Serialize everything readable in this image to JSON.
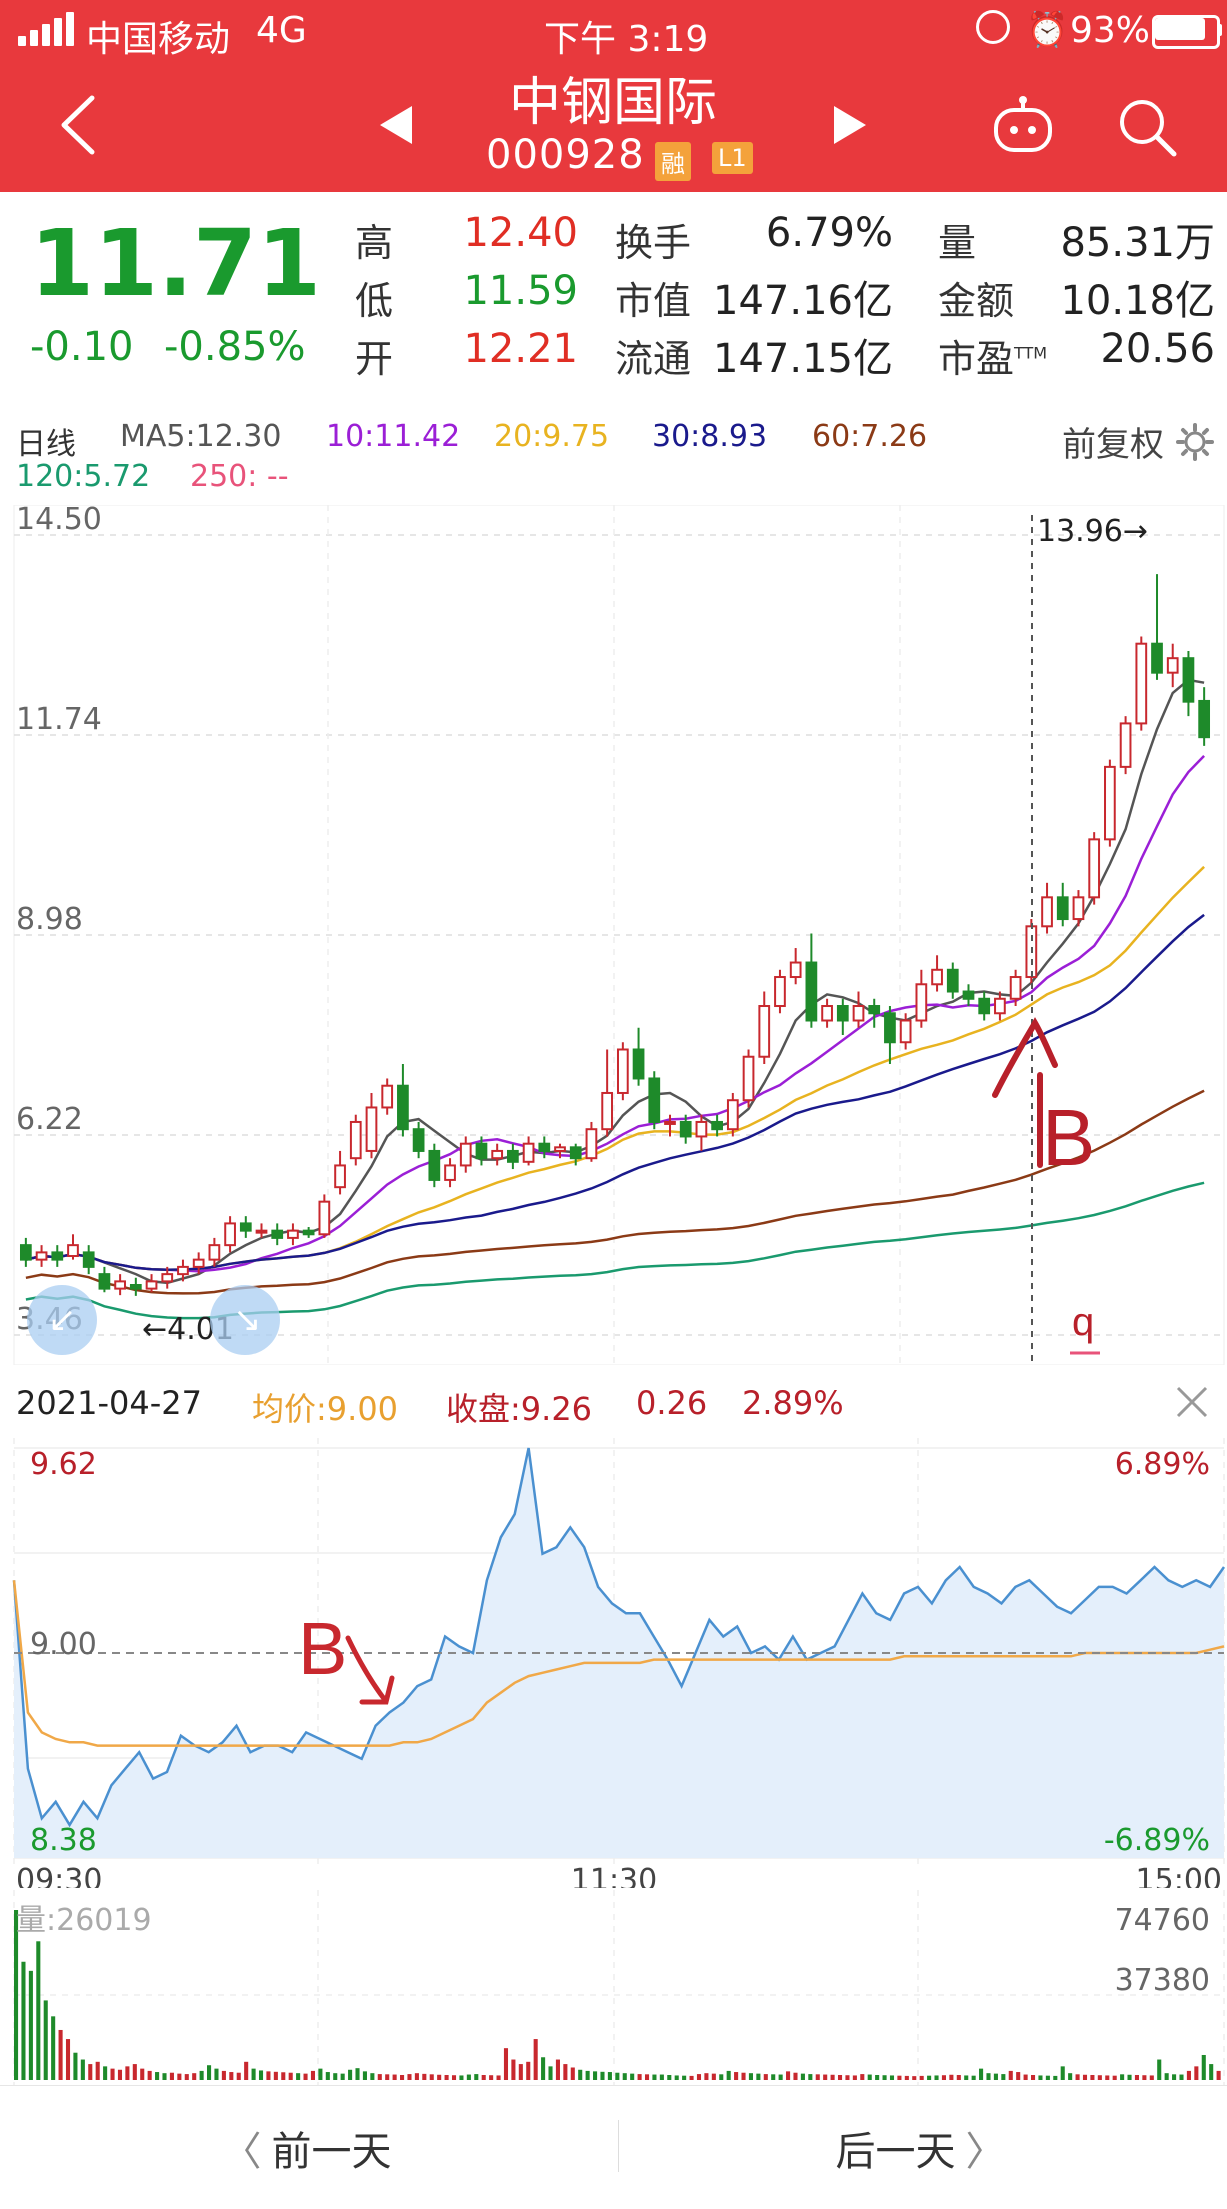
{
  "status_bar": {
    "carrier": "中国移动",
    "network": "4G",
    "time": "下午 3:19",
    "battery": "93%"
  },
  "header": {
    "back_icon": "chevron-left-icon",
    "stock_name": "中钢国际",
    "stock_code": "000928",
    "tag_margin": "融",
    "tag_level": "L1",
    "prev_icon": "triangle-left-icon",
    "next_icon": "triangle-right-icon",
    "robot_icon": "robot-icon",
    "search_icon": "search-icon"
  },
  "quote": {
    "price": "11.71",
    "change": "-0.10",
    "change_pct": "-0.85%",
    "rows": [
      [
        {
          "label": "高",
          "value": "12.40",
          "color": "red"
        },
        {
          "label": "换手",
          "value": "6.79%",
          "color": "dark"
        },
        {
          "label": "量",
          "value": "85.31万",
          "color": "dark"
        }
      ],
      [
        {
          "label": "低",
          "value": "11.59",
          "color": "green"
        },
        {
          "label": "市值",
          "value": "147.16亿",
          "color": "dark"
        },
        {
          "label": "金额",
          "value": "10.18亿",
          "color": "dark"
        }
      ],
      [
        {
          "label": "开",
          "value": "12.21",
          "color": "red"
        },
        {
          "label": "流通",
          "value": "147.15亿",
          "color": "dark"
        },
        {
          "label": "市盈",
          "value": "20.56",
          "color": "dark",
          "sup": "TTM"
        }
      ]
    ]
  },
  "ma_legend": {
    "period": "日线",
    "ma5": "MA5:12.30",
    "ma10": "10:11.42",
    "ma20": "20:9.75",
    "ma30": "30:8.93",
    "ma60": "60:7.26",
    "ma120": "120:5.72",
    "ma250": "250: --",
    "adjust": "前复权",
    "settings_icon": "gear-icon",
    "colors": {
      "ma5": "#555555",
      "ma10": "#9b1fd6",
      "ma20": "#e8b320",
      "ma30": "#1a1a8c",
      "ma60": "#8b3a16",
      "ma120": "#1a9a6e",
      "ma250": "#e8537a"
    }
  },
  "kline": {
    "y_ticks": [
      "14.50",
      "11.74",
      "8.98",
      "6.22",
      "3.46"
    ],
    "high_marker": "13.96→",
    "low_marker": "←4.01",
    "annotation_b": "B",
    "annotation_q": "q"
  },
  "chart_data": {
    "type": "candlestick",
    "ylim": [
      3.46,
      14.5
    ],
    "y_ticks": [
      14.5,
      11.74,
      8.98,
      6.22,
      3.46
    ],
    "candles": [
      [
        4.7,
        4.5,
        4.8,
        4.4
      ],
      [
        4.5,
        4.6,
        4.7,
        4.4
      ],
      [
        4.6,
        4.5,
        4.7,
        4.4
      ],
      [
        4.55,
        4.7,
        4.85,
        4.5
      ],
      [
        4.6,
        4.4,
        4.7,
        4.3
      ],
      [
        4.3,
        4.1,
        4.4,
        4.05
      ],
      [
        4.1,
        4.2,
        4.3,
        4.01
      ],
      [
        4.15,
        4.1,
        4.25,
        4.0
      ],
      [
        4.1,
        4.2,
        4.3,
        4.05
      ],
      [
        4.2,
        4.3,
        4.4,
        4.1
      ],
      [
        4.3,
        4.4,
        4.5,
        4.2
      ],
      [
        4.4,
        4.5,
        4.6,
        4.3
      ],
      [
        4.5,
        4.7,
        4.8,
        4.4
      ],
      [
        4.7,
        5.0,
        5.1,
        4.6
      ],
      [
        5.0,
        4.9,
        5.1,
        4.8
      ],
      [
        4.9,
        4.9,
        5.0,
        4.8
      ],
      [
        4.9,
        4.8,
        5.0,
        4.7
      ],
      [
        4.8,
        4.9,
        5.0,
        4.7
      ],
      [
        4.9,
        4.85,
        4.95,
        4.8
      ],
      [
        4.85,
        5.3,
        5.4,
        4.8
      ],
      [
        5.5,
        5.8,
        6.0,
        5.4
      ],
      [
        5.9,
        6.4,
        6.5,
        5.8
      ],
      [
        6.0,
        6.6,
        6.8,
        5.9
      ],
      [
        6.6,
        6.9,
        7.0,
        6.5
      ],
      [
        6.9,
        6.3,
        7.2,
        6.2
      ],
      [
        6.3,
        6.0,
        6.4,
        5.9
      ],
      [
        6.0,
        5.6,
        6.1,
        5.5
      ],
      [
        5.6,
        5.8,
        5.9,
        5.5
      ],
      [
        5.8,
        6.1,
        6.2,
        5.7
      ],
      [
        6.1,
        5.9,
        6.2,
        5.8
      ],
      [
        5.9,
        6.0,
        6.1,
        5.8
      ],
      [
        6.0,
        5.85,
        6.1,
        5.75
      ],
      [
        5.85,
        6.1,
        6.2,
        5.8
      ],
      [
        6.1,
        6.0,
        6.2,
        5.9
      ],
      [
        6.0,
        6.05,
        6.1,
        5.9
      ],
      [
        6.05,
        5.9,
        6.1,
        5.8
      ],
      [
        5.9,
        6.3,
        6.4,
        5.85
      ],
      [
        6.3,
        6.8,
        7.4,
        6.2
      ],
      [
        6.8,
        7.4,
        7.5,
        6.7
      ],
      [
        7.4,
        7.0,
        7.7,
        6.9
      ],
      [
        7.0,
        6.4,
        7.1,
        6.3
      ],
      [
        6.4,
        6.4,
        6.5,
        6.2
      ],
      [
        6.4,
        6.2,
        6.5,
        6.1
      ],
      [
        6.2,
        6.4,
        6.5,
        6.0
      ],
      [
        6.4,
        6.3,
        6.5,
        6.2
      ],
      [
        6.3,
        6.7,
        6.8,
        6.2
      ],
      [
        6.7,
        7.3,
        7.4,
        6.6
      ],
      [
        7.3,
        8.0,
        8.2,
        7.2
      ],
      [
        8.0,
        8.4,
        8.5,
        7.9
      ],
      [
        8.4,
        8.6,
        8.8,
        8.3
      ],
      [
        8.6,
        7.8,
        9.0,
        7.7
      ],
      [
        7.8,
        8.0,
        8.1,
        7.7
      ],
      [
        8.0,
        7.8,
        8.1,
        7.6
      ],
      [
        7.8,
        8.0,
        8.2,
        7.7
      ],
      [
        8.0,
        7.9,
        8.1,
        7.7
      ],
      [
        7.9,
        7.5,
        8.0,
        7.2
      ],
      [
        7.5,
        7.8,
        7.9,
        7.4
      ],
      [
        7.8,
        8.3,
        8.5,
        7.7
      ],
      [
        8.3,
        8.5,
        8.7,
        8.2
      ],
      [
        8.5,
        8.2,
        8.6,
        8.1
      ],
      [
        8.2,
        8.1,
        8.3,
        8.0
      ],
      [
        8.1,
        7.9,
        8.2,
        7.8
      ],
      [
        7.9,
        8.1,
        8.2,
        7.8
      ],
      [
        8.1,
        8.4,
        8.5,
        8.0
      ],
      [
        8.4,
        9.1,
        9.2,
        8.3
      ],
      [
        9.1,
        9.5,
        9.7,
        9.0
      ],
      [
        9.5,
        9.2,
        9.7,
        9.1
      ],
      [
        9.2,
        9.5,
        9.6,
        9.1
      ],
      [
        9.5,
        10.3,
        10.4,
        9.4
      ],
      [
        10.3,
        11.3,
        11.4,
        10.2
      ],
      [
        11.3,
        11.9,
        12.0,
        11.2
      ],
      [
        11.9,
        13.0,
        13.1,
        11.8
      ],
      [
        13.0,
        12.6,
        13.96,
        12.5
      ],
      [
        12.6,
        12.8,
        13.0,
        12.4
      ],
      [
        12.8,
        12.2,
        12.9,
        12.0
      ],
      [
        12.21,
        11.71,
        12.4,
        11.59
      ]
    ],
    "intraday": {
      "date": "2021-04-27",
      "avg_label": "均价:9.00",
      "close_label": "收盘:9.26",
      "chg": "0.26",
      "chg_pct": "2.89%",
      "ylim": [
        8.38,
        9.62
      ],
      "prev_close": 9.0,
      "x_ticks": [
        "09:30",
        "11:30",
        "15:00"
      ],
      "price": [
        9.22,
        8.65,
        8.5,
        8.55,
        8.48,
        8.55,
        8.5,
        8.6,
        8.65,
        8.7,
        8.62,
        8.64,
        8.75,
        8.72,
        8.7,
        8.73,
        8.78,
        8.7,
        8.72,
        8.72,
        8.7,
        8.76,
        8.74,
        8.72,
        8.7,
        8.68,
        8.78,
        8.82,
        8.85,
        8.9,
        8.92,
        9.05,
        9.02,
        9.0,
        9.22,
        9.35,
        9.42,
        9.62,
        9.3,
        9.32,
        9.38,
        9.32,
        9.2,
        9.15,
        9.12,
        9.12,
        9.05,
        8.98,
        8.9,
        9.0,
        9.1,
        9.05,
        9.08,
        9.0,
        9.02,
        8.98,
        9.05,
        8.98,
        9.0,
        9.02,
        9.1,
        9.18,
        9.12,
        9.1,
        9.18,
        9.2,
        9.15,
        9.22,
        9.26,
        9.2,
        9.18,
        9.15,
        9.2,
        9.22,
        9.18,
        9.14,
        9.12,
        9.16,
        9.2,
        9.2,
        9.18,
        9.22,
        9.26,
        9.22,
        9.2,
        9.22,
        9.2,
        9.26
      ],
      "avg": [
        9.22,
        8.82,
        8.76,
        8.74,
        8.73,
        8.73,
        8.72,
        8.72,
        8.72,
        8.72,
        8.72,
        8.72,
        8.72,
        8.72,
        8.72,
        8.72,
        8.72,
        8.72,
        8.72,
        8.72,
        8.72,
        8.72,
        8.72,
        8.72,
        8.72,
        8.72,
        8.72,
        8.72,
        8.73,
        8.73,
        8.74,
        8.76,
        8.78,
        8.8,
        8.85,
        8.88,
        8.91,
        8.93,
        8.94,
        8.95,
        8.96,
        8.97,
        8.97,
        8.97,
        8.97,
        8.97,
        8.98,
        8.98,
        8.98,
        8.98,
        8.98,
        8.98,
        8.98,
        8.98,
        8.98,
        8.98,
        8.98,
        8.98,
        8.98,
        8.98,
        8.98,
        8.98,
        8.98,
        8.98,
        8.99,
        8.99,
        8.99,
        8.99,
        8.99,
        8.99,
        8.99,
        8.99,
        8.99,
        8.99,
        8.99,
        8.99,
        8.99,
        9.0,
        9.0,
        9.0,
        9.0,
        9.0,
        9.0,
        9.0,
        9.0,
        9.0,
        9.01,
        9.02
      ]
    },
    "volume": {
      "label": "量:26019",
      "y_ticks": [
        "74760",
        "37380"
      ],
      "max": 74760,
      "bars": [
        74760,
        52000,
        48000,
        61000,
        35000,
        28000,
        22000,
        18000,
        12000,
        9000,
        7000,
        8000,
        6000,
        5000,
        4500,
        6000,
        7000,
        5000,
        4000,
        3500,
        3000,
        3200,
        2800,
        2600,
        3000,
        4000,
        6500,
        5000,
        4000,
        3500,
        3200,
        8000,
        5000,
        4200,
        3800,
        3600,
        3400,
        3200,
        3000,
        2800,
        4000,
        5000,
        3500,
        3000,
        2800,
        4500,
        5200,
        3800,
        3000,
        2600,
        2500,
        2400,
        2200,
        2600,
        3000,
        2700,
        2500,
        2300,
        2200,
        2100,
        2000,
        2400,
        2600,
        2200,
        2100,
        2000,
        14000,
        9000,
        7000,
        8000,
        18000,
        10000,
        6000,
        9000,
        7000,
        5500,
        4500,
        4000,
        3800,
        3600,
        3500,
        3200,
        3000,
        2800,
        2600,
        2500,
        2400,
        2400,
        2200,
        2000,
        1900,
        1800,
        2600,
        3000,
        2800,
        2500,
        4000,
        3500,
        3200,
        3000,
        2800,
        2600,
        2500,
        2400,
        3800,
        3200,
        2800,
        2600,
        2500,
        2400,
        2300,
        2200,
        2100,
        2000,
        2600,
        2400,
        2200,
        2100,
        2000,
        1900,
        1800,
        1700,
        1800,
        1900,
        2000,
        2100,
        2300,
        2200,
        2000,
        1900,
        5000,
        3000,
        2800,
        2600,
        4000,
        3500,
        2400,
        2200,
        2000,
        1900,
        1800,
        6000,
        3000,
        2500,
        2300,
        2200,
        2100,
        2000,
        1900,
        2500,
        2300,
        2200,
        2100,
        2000,
        9000,
        3000,
        2500,
        2400,
        4000,
        6000,
        11000,
        7000,
        4000
      ]
    }
  },
  "intraday_ui": {
    "close_icon": "close-icon",
    "y_top": "9.62",
    "y_mid": "9.00",
    "y_bot": "8.38",
    "pct_top": "6.89%",
    "pct_bot": "-6.89%",
    "annotation_b": "B"
  },
  "nav": {
    "prev_day": "前一天",
    "next_day": "后一天"
  }
}
